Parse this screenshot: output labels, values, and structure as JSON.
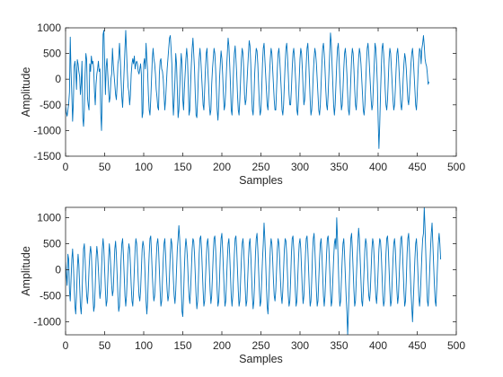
{
  "colors": {
    "line": "#0072bd",
    "axes": "#262626",
    "background": "#ffffff"
  },
  "chart_data": [
    {
      "type": "line",
      "title": "",
      "xlabel": "Samples",
      "ylabel": "Amplitude",
      "xlim": [
        0,
        500
      ],
      "ylim": [
        -1500,
        1000
      ],
      "xticks": [
        0,
        50,
        100,
        150,
        200,
        250,
        300,
        350,
        400,
        450,
        500
      ],
      "yticks": [
        -1500,
        -1000,
        -500,
        0,
        500,
        1000
      ],
      "grid": false,
      "series": [
        {
          "x_start": 0,
          "x_step": 1,
          "y": [
            -500,
            -650,
            -720,
            -600,
            -480,
            -250,
            820,
            150,
            -300,
            -820,
            -450,
            250,
            350,
            150,
            -200,
            380,
            300,
            150,
            50,
            -300,
            -80,
            350,
            -750,
            -920,
            -600,
            100,
            500,
            380,
            -350,
            -500,
            -600,
            300,
            150,
            450,
            300,
            350,
            200,
            -250,
            -500,
            -100,
            100,
            200,
            350,
            150,
            200,
            -650,
            -1000,
            -250,
            870,
            950,
            350,
            -300,
            250,
            400,
            100,
            -200,
            -450,
            -350,
            0,
            100,
            600,
            300,
            100,
            -100,
            -300,
            -400,
            -100,
            300,
            400,
            700,
            400,
            0,
            -350,
            -550,
            -200,
            200,
            600,
            950,
            550,
            150,
            -150,
            -250,
            -500,
            -300,
            100,
            300,
            400,
            300,
            450,
            200,
            300,
            350,
            300,
            150,
            100,
            200,
            300,
            100,
            -750,
            -650,
            300,
            400,
            200,
            700,
            400,
            150,
            -300,
            -600,
            -700,
            -400,
            0,
            400,
            600,
            400,
            300,
            100,
            -200,
            -350,
            -550,
            -600,
            100,
            350,
            400,
            200,
            150,
            0,
            -300,
            -600,
            -400,
            -100,
            200,
            400,
            600,
            800,
            850,
            600,
            300,
            -300,
            -700,
            -400,
            0,
            500,
            300,
            -200,
            -750,
            -600,
            -200,
            200,
            500,
            300,
            -400,
            -600,
            -200,
            100,
            400,
            600,
            400,
            -100,
            -700,
            -600,
            -100,
            300,
            600,
            800,
            500,
            200,
            -300,
            -700,
            -750,
            -400,
            100,
            400,
            600,
            400,
            100,
            -200,
            -500,
            -600,
            -200,
            200,
            500,
            600,
            200,
            -100,
            -500,
            -700,
            -600,
            -100,
            200,
            400,
            600,
            500,
            200,
            -200,
            -600,
            -800,
            -500,
            0,
            300,
            550,
            400,
            100,
            -300,
            -600,
            -500,
            -200,
            200,
            500,
            800,
            650,
            300,
            -100,
            -600,
            -700,
            -300,
            200,
            500,
            650,
            400,
            100,
            -300,
            -600,
            -700,
            -400,
            0,
            400,
            600,
            500,
            200,
            -300,
            -500,
            -400,
            -100,
            200,
            500,
            750,
            650,
            300,
            -200,
            -600,
            -700,
            -400,
            100,
            400,
            600,
            550,
            300,
            -100,
            -500,
            -700,
            -600,
            -200,
            300,
            600,
            700,
            400,
            100,
            -200,
            -500,
            -600,
            -300,
            100,
            400,
            600,
            500,
            200,
            -100,
            -400,
            -600,
            -600,
            -200,
            200,
            500,
            600,
            400,
            100,
            -200,
            -600,
            -700,
            -500,
            -100,
            300,
            600,
            700,
            450,
            100,
            -300,
            -500,
            -500,
            -200,
            200,
            500,
            600,
            400,
            100,
            -200,
            -600,
            -700,
            -400,
            0,
            400,
            600,
            500,
            200,
            -200,
            -500,
            -400,
            -100,
            300,
            600,
            700,
            400,
            0,
            -400,
            -700,
            -600,
            -300,
            100,
            400,
            600,
            500,
            300,
            0,
            -300,
            -600,
            -700,
            -500,
            -100,
            300,
            600,
            700,
            500,
            200,
            -200,
            -500,
            -600,
            -300,
            100,
            500,
            900,
            700,
            300,
            -100,
            -500,
            -700,
            -500,
            -100,
            300,
            600,
            700,
            400,
            0,
            -300,
            -600,
            -500,
            -200,
            200,
            500,
            600,
            400,
            100,
            -300,
            -600,
            -700,
            -400,
            0,
            400,
            600,
            500,
            200,
            -200,
            -500,
            -600,
            -300,
            100,
            400,
            600,
            500,
            300,
            0,
            -300,
            -600,
            -700,
            -500,
            -100,
            300,
            600,
            700,
            500,
            200,
            -100,
            -400,
            -600,
            -500,
            -100,
            300,
            700,
            600,
            300,
            -100,
            -800,
            -1350,
            -900,
            -300,
            200,
            600,
            700,
            500,
            200,
            -200,
            -500,
            -600,
            -400,
            0,
            400,
            600,
            500,
            200,
            -100,
            -400,
            -600,
            -500,
            -200,
            200,
            500,
            600,
            400,
            100,
            -200,
            -500,
            -600,
            -400,
            0,
            300,
            500,
            400,
            200,
            -100,
            -400,
            -500,
            -300,
            0,
            300,
            500,
            600,
            400,
            100,
            -200,
            -500,
            -600,
            -300,
            100,
            400,
            600,
            550,
            300,
            600,
            700,
            850,
            650,
            400,
            300,
            250,
            100,
            -100,
            -50
          ]
        }
      ]
    },
    {
      "type": "line",
      "title": "",
      "xlabel": "Samples",
      "ylabel": "Amplitude",
      "xlim": [
        0,
        500
      ],
      "ylim": [
        -1250,
        1200
      ],
      "xticks": [
        0,
        50,
        100,
        150,
        200,
        250,
        300,
        350,
        400,
        450,
        500
      ],
      "yticks": [
        -1000,
        -500,
        0,
        500,
        1000
      ],
      "grid": false,
      "series": [
        {
          "x_start": 0,
          "x_step": 1,
          "y": [
            150,
            -100,
            -300,
            300,
            200,
            -400,
            -600,
            -200,
            200,
            400,
            100,
            -300,
            -700,
            -850,
            -500,
            0,
            300,
            100,
            -300,
            -700,
            -850,
            -500,
            0,
            400,
            500,
            200,
            -200,
            -500,
            -650,
            -400,
            0,
            300,
            450,
            300,
            -100,
            -500,
            -800,
            -700,
            -300,
            200,
            450,
            300,
            0,
            -300,
            -550,
            -400,
            0,
            400,
            600,
            400,
            0,
            -400,
            -700,
            -600,
            -200,
            200,
            500,
            300,
            0,
            -300,
            -500,
            -400,
            0,
            400,
            550,
            300,
            -100,
            -500,
            -800,
            -700,
            -300,
            200,
            500,
            600,
            300,
            -100,
            -500,
            -700,
            -500,
            -100,
            300,
            500,
            400,
            100,
            -300,
            -600,
            -700,
            -400,
            0,
            400,
            600,
            500,
            200,
            -200,
            -500,
            -600,
            -400,
            0,
            400,
            550,
            450,
            200,
            -200,
            -600,
            -850,
            -600,
            -100,
            300,
            600,
            650,
            300,
            -100,
            -400,
            -600,
            -500,
            -200,
            200,
            500,
            600,
            400,
            0,
            -400,
            -700,
            -600,
            -200,
            200,
            500,
            600,
            300,
            -100,
            -400,
            -600,
            -500,
            -100,
            300,
            600,
            500,
            200,
            -200,
            -500,
            -650,
            -400,
            0,
            400,
            600,
            850,
            600,
            200,
            -300,
            -800,
            -900,
            -500,
            0,
            400,
            600,
            450,
            200,
            -200,
            -500,
            -650,
            -400,
            0,
            400,
            600,
            550,
            300,
            -100,
            -500,
            -750,
            -600,
            -200,
            300,
            600,
            650,
            400,
            0,
            -400,
            -700,
            -600,
            -200,
            200,
            500,
            600,
            400,
            0,
            -400,
            -650,
            -500,
            -100,
            300,
            600,
            650,
            400,
            0,
            -400,
            -700,
            -600,
            -200,
            300,
            600,
            700,
            400,
            0,
            -400,
            -700,
            -600,
            -200,
            200,
            500,
            600,
            300,
            -100,
            -500,
            -700,
            -500,
            -100,
            300,
            600,
            650,
            400,
            0,
            -400,
            -700,
            -600,
            -200,
            200,
            500,
            600,
            400,
            0,
            -400,
            -700,
            -600,
            -200,
            200,
            500,
            600,
            300,
            -100,
            -500,
            -750,
            -600,
            -200,
            300,
            600,
            700,
            400,
            0,
            -400,
            -700,
            -600,
            -200,
            200,
            500,
            900,
            600,
            200,
            -300,
            -700,
            -850,
            -500,
            0,
            400,
            600,
            500,
            200,
            -200,
            -500,
            -600,
            -400,
            0,
            400,
            600,
            500,
            200,
            -200,
            -500,
            -650,
            -400,
            0,
            400,
            600,
            550,
            300,
            -100,
            -500,
            -700,
            -600,
            -200,
            300,
            600,
            650,
            400,
            0,
            -400,
            -700,
            -600,
            -200,
            200,
            500,
            600,
            400,
            0,
            -400,
            -650,
            -500,
            -100,
            300,
            600,
            650,
            400,
            0,
            -400,
            -700,
            -600,
            -200,
            300,
            600,
            700,
            400,
            0,
            -400,
            -700,
            -600,
            -200,
            200,
            500,
            600,
            300,
            -100,
            -500,
            -700,
            -500,
            -100,
            300,
            600,
            650,
            400,
            0,
            -400,
            -700,
            -600,
            -200,
            200,
            500,
            600,
            400,
            1000,
            600,
            100,
            -400,
            -700,
            -600,
            -200,
            200,
            500,
            600,
            300,
            -100,
            -500,
            -800,
            -1250,
            -800,
            -300,
            200,
            600,
            700,
            400,
            0,
            -400,
            -700,
            -600,
            -200,
            200,
            500,
            800,
            600,
            200,
            -200,
            -600,
            -700,
            -400,
            0,
            400,
            600,
            500,
            200,
            -200,
            -500,
            -600,
            -400,
            0,
            400,
            600,
            500,
            200,
            -200,
            -500,
            -650,
            -400,
            0,
            400,
            600,
            550,
            300,
            -100,
            -500,
            -700,
            -600,
            -200,
            300,
            600,
            650,
            400,
            0,
            -400,
            -700,
            -600,
            -200,
            200,
            500,
            600,
            400,
            0,
            -400,
            -650,
            -500,
            -100,
            300,
            600,
            650,
            400,
            0,
            -400,
            -700,
            -600,
            -200,
            300,
            600,
            700,
            400,
            0,
            -400,
            -700,
            -1000,
            -600,
            -200,
            200,
            500,
            600,
            300,
            -100,
            -500,
            -700,
            -500,
            -100,
            300,
            600,
            700,
            1200,
            800,
            300,
            -200,
            -600,
            -700,
            -400,
            0,
            400,
            700,
            900,
            500,
            100,
            -300,
            -600,
            -700,
            -300,
            100,
            500,
            700,
            500,
            200
          ]
        }
      ]
    }
  ]
}
